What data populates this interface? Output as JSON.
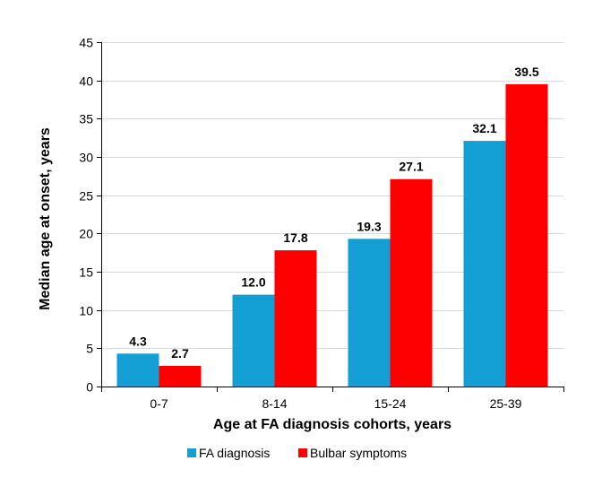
{
  "chart_data": {
    "type": "bar",
    "title": "",
    "xlabel": "Age at FA diagnosis cohorts, years",
    "ylabel": "Median age at onset, years",
    "categories": [
      "0-7",
      "8-14",
      "15-24",
      "25-39"
    ],
    "series": [
      {
        "name": "FA diagnosis",
        "color": "#139FD4",
        "values": [
          4.3,
          12.0,
          19.3,
          32.1
        ],
        "labels": [
          "4.3",
          "12.0",
          "19.3",
          "32.1"
        ]
      },
      {
        "name": "Bulbar symptoms",
        "color": "#FF0000",
        "values": [
          2.7,
          17.8,
          27.1,
          39.5
        ],
        "labels": [
          "2.7",
          "17.8",
          "27.1",
          "39.5"
        ]
      }
    ],
    "ylim": [
      0,
      45
    ],
    "yticks": [
      0,
      5,
      10,
      15,
      20,
      25,
      30,
      35,
      40,
      45
    ],
    "ytick_labels": [
      "0",
      "5",
      "10",
      "15",
      "20",
      "25",
      "30",
      "35",
      "40",
      "45"
    ],
    "grid": true,
    "legend_position": "bottom"
  }
}
